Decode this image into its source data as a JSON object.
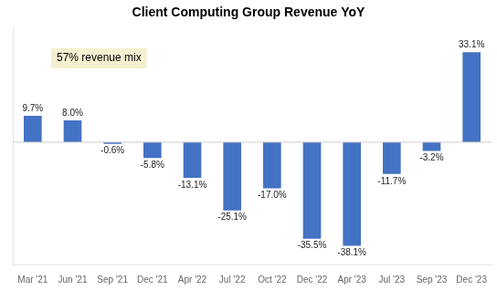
{
  "chart_data": {
    "type": "bar",
    "title": "Client Computing Group Revenue YoY",
    "annotation": "57% revenue mix",
    "categories": [
      "Mar '21",
      "Jun '21",
      "Sep '21",
      "Dec '21",
      "Apr '22",
      "Jul '22",
      "Oct '22",
      "Dec '22",
      "Apr '23",
      "Jul '23",
      "Sep '23",
      "Dec '23"
    ],
    "values": [
      9.7,
      8.0,
      -0.6,
      -5.8,
      -13.1,
      -25.1,
      -17.0,
      -35.5,
      -38.1,
      -11.7,
      -3.2,
      33.1
    ],
    "value_labels": [
      "9.7%",
      "8.0%",
      "-0.6%",
      "-5.8%",
      "-13.1%",
      "-25.1%",
      "-17.0%",
      "-35.5%",
      "-38.1%",
      "-11.7%",
      "-3.2%",
      "33.1%"
    ],
    "color": "#4472C4",
    "ylim": [
      -45,
      42
    ],
    "grid": false,
    "data_labels": true,
    "tick_labels": "x"
  }
}
